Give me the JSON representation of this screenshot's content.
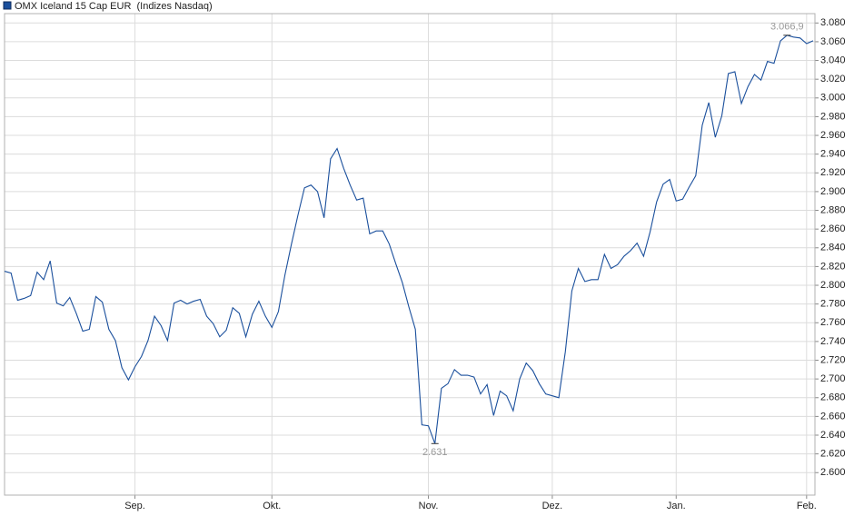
{
  "chart_data": {
    "type": "line",
    "categories": [
      null,
      null,
      null,
      null,
      null,
      null,
      null,
      null,
      null,
      null,
      null,
      null,
      null,
      null,
      null,
      null,
      null,
      null,
      null,
      null,
      "Sep.",
      null,
      null,
      null,
      null,
      null,
      null,
      null,
      null,
      null,
      null,
      null,
      null,
      null,
      null,
      null,
      null,
      null,
      null,
      null,
      null,
      "Okt.",
      null,
      null,
      null,
      null,
      null,
      null,
      null,
      null,
      null,
      null,
      null,
      null,
      null,
      null,
      null,
      null,
      null,
      null,
      null,
      null,
      null,
      null,
      null,
      "Nov.",
      null,
      null,
      null,
      null,
      null,
      null,
      null,
      null,
      null,
      null,
      null,
      null,
      null,
      null,
      null,
      null,
      null,
      null,
      "Dez.",
      null,
      null,
      null,
      null,
      null,
      null,
      null,
      null,
      null,
      null,
      null,
      null,
      null,
      null,
      null,
      null,
      null,
      null,
      "Jan.",
      null,
      null,
      null,
      null,
      null,
      null,
      null,
      null,
      null,
      null,
      null,
      null,
      null,
      null,
      null,
      null,
      null,
      null,
      null,
      "Feb.",
      null
    ],
    "series": [
      {
        "name": "OMX Iceland 15 Cap EUR  (Indizes Nasdaq)",
        "color": "#1a4f9c",
        "values": [
          2815,
          2813,
          2784,
          2786,
          2789,
          2814,
          2806,
          2826,
          2781,
          2778,
          2787,
          2770,
          2751,
          2753,
          2788,
          2782,
          2753,
          2741,
          2712,
          2699,
          2713,
          2724,
          2741,
          2767,
          2757,
          2741,
          2781,
          2784,
          2780,
          2783,
          2785,
          2767,
          2759,
          2745,
          2752,
          2776,
          2770,
          2745,
          2769,
          2783,
          2767,
          2755,
          2772,
          2811,
          2844,
          2875,
          2904,
          2907,
          2900,
          2872,
          2935,
          2946,
          2925,
          2907,
          2891,
          2893,
          2855,
          2858,
          2858,
          2844,
          2823,
          2803,
          2777,
          2753,
          2651,
          2650,
          2631,
          2690,
          2695,
          2710,
          2704,
          2704,
          2702,
          2684,
          2694,
          2661,
          2687,
          2682,
          2666,
          2700,
          2717,
          2709,
          2695,
          2684,
          2682,
          2680,
          2729,
          2794,
          2818,
          2804,
          2806,
          2806,
          2833,
          2818,
          2822,
          2831,
          2837,
          2845,
          2831,
          2857,
          2889,
          2908,
          2913,
          2890,
          2892,
          2905,
          2917,
          2971,
          2995,
          2958,
          2981,
          3026,
          3028,
          2994,
          3012,
          3025,
          3019,
          3039,
          3037,
          3061,
          3066.9,
          3065,
          3064,
          3058,
          3061
        ]
      }
    ],
    "max_label": "3.066,9",
    "min_label": "2.631",
    "ylim": [
      2576,
      3090
    ],
    "yticks": [
      {
        "value": 2600,
        "label": "2.600"
      },
      {
        "value": 2620,
        "label": "2.620"
      },
      {
        "value": 2640,
        "label": "2.640"
      },
      {
        "value": 2660,
        "label": "2.660"
      },
      {
        "value": 2680,
        "label": "2.680"
      },
      {
        "value": 2700,
        "label": "2.700"
      },
      {
        "value": 2720,
        "label": "2.720"
      },
      {
        "value": 2740,
        "label": "2.740"
      },
      {
        "value": 2760,
        "label": "2.760"
      },
      {
        "value": 2780,
        "label": "2.780"
      },
      {
        "value": 2800,
        "label": "2.800"
      },
      {
        "value": 2820,
        "label": "2.820"
      },
      {
        "value": 2840,
        "label": "2.840"
      },
      {
        "value": 2860,
        "label": "2.860"
      },
      {
        "value": 2880,
        "label": "2.880"
      },
      {
        "value": 2900,
        "label": "2.900"
      },
      {
        "value": 2920,
        "label": "2.920"
      },
      {
        "value": 2940,
        "label": "2.940"
      },
      {
        "value": 2960,
        "label": "2.960"
      },
      {
        "value": 2980,
        "label": "2.980"
      },
      {
        "value": 3000,
        "label": "3.000"
      },
      {
        "value": 3020,
        "label": "3.020"
      },
      {
        "value": 3040,
        "label": "3.040"
      },
      {
        "value": 3060,
        "label": "3.060"
      },
      {
        "value": 3080,
        "label": "3.080"
      }
    ],
    "grid": true
  }
}
